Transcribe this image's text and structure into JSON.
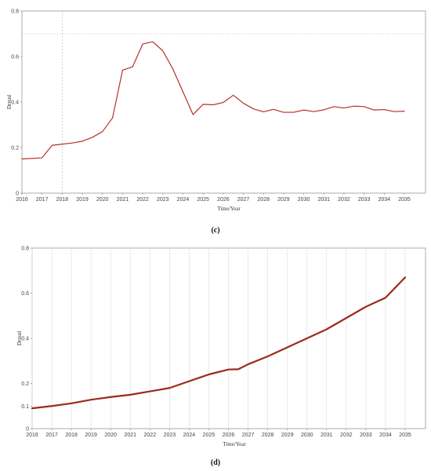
{
  "chart_data": [
    {
      "type": "line",
      "panel_label": "(c)",
      "xlabel": "Time/Year",
      "ylabel": "Drmnl",
      "ylim": [
        0,
        0.8
      ],
      "yticks": [
        "0",
        "0.2",
        "0.4",
        "0.6",
        "0.8"
      ],
      "xticks": [
        "2016",
        "2017",
        "2018",
        "2019",
        "2020",
        "2021",
        "2022",
        "2023",
        "2024",
        "2025",
        "2026",
        "2027",
        "2028",
        "2029",
        "2030",
        "2031",
        "2032",
        "2033",
        "2034",
        "2035"
      ],
      "grid": "dashed-minimal",
      "line_color": "#b5302a",
      "series": [
        {
          "x": [
            2016,
            2017,
            2017.5,
            2018,
            2018.5,
            2019,
            2019.5,
            2020,
            2020.5,
            2021,
            2021.5,
            2022,
            2022.5,
            2023,
            2023.5,
            2024,
            2024.5,
            2025,
            2025.5,
            2026,
            2026.5,
            2027,
            2027.5,
            2028,
            2028.5,
            2029,
            2029.5,
            2030,
            2030.5,
            2031,
            2031.5,
            2032,
            2032.5,
            2033,
            2033.5,
            2034,
            2034.5,
            2035
          ],
          "values": [
            0.15,
            0.155,
            0.21,
            0.215,
            0.22,
            0.228,
            0.245,
            0.27,
            0.33,
            0.54,
            0.555,
            0.655,
            0.665,
            0.625,
            0.545,
            0.445,
            0.345,
            0.39,
            0.388,
            0.398,
            0.43,
            0.395,
            0.37,
            0.357,
            0.368,
            0.355,
            0.355,
            0.365,
            0.358,
            0.366,
            0.38,
            0.374,
            0.382,
            0.38,
            0.365,
            0.367,
            0.358,
            0.36
          ]
        }
      ]
    },
    {
      "type": "line",
      "panel_label": "(d)",
      "xlabel": "Time/Year",
      "ylabel": "Drmnl",
      "ylim": [
        0,
        0.8
      ],
      "yticks": [
        "0",
        "0.1",
        "0.2",
        "0.4",
        "0.6",
        "0.8"
      ],
      "xticks": [
        "2016",
        "2017",
        "2018",
        "2019",
        "2020",
        "2021",
        "2022",
        "2023",
        "2024",
        "2025",
        "2026",
        "2027",
        "2028",
        "2029",
        "2030",
        "2031",
        "2032",
        "2033",
        "2034",
        "2035"
      ],
      "grid": "vertical-light",
      "line_color": "#9b2a1e",
      "series": [
        {
          "x": [
            2016,
            2017,
            2018,
            2019,
            2020,
            2021,
            2022,
            2023,
            2024,
            2025,
            2026,
            2026.5,
            2027,
            2028,
            2029,
            2030,
            2031,
            2032,
            2033,
            2034,
            2035
          ],
          "values": [
            0.09,
            0.1,
            0.112,
            0.128,
            0.14,
            0.15,
            0.165,
            0.18,
            0.21,
            0.24,
            0.262,
            0.263,
            0.285,
            0.32,
            0.36,
            0.4,
            0.44,
            0.49,
            0.54,
            0.58,
            0.67
          ]
        }
      ]
    }
  ]
}
